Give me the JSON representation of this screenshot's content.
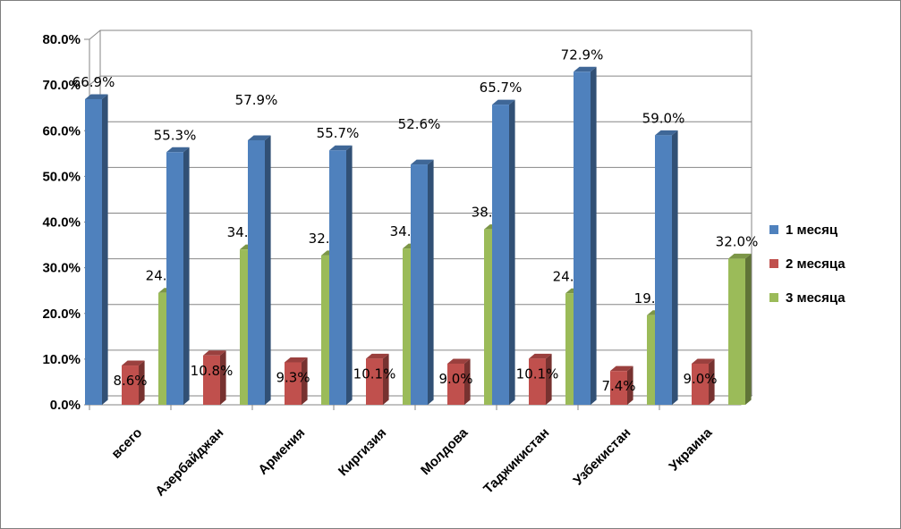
{
  "chart_data": {
    "type": "bar",
    "title": "",
    "xlabel": "",
    "ylabel": "",
    "ylim": [
      0,
      0.8
    ],
    "y_ticks": [
      "0.0%",
      "10.0%",
      "20.0%",
      "30.0%",
      "40.0%",
      "50.0%",
      "60.0%",
      "70.0%",
      "80.0%"
    ],
    "grid": true,
    "legend_position": "right",
    "categories": [
      "всего",
      "Азербайджан",
      "Армения",
      "Киргизия",
      "Молдова",
      "Таджикистан",
      "Узбекистан",
      "Украина"
    ],
    "series": [
      {
        "name": "1 месяц",
        "color": "#4f81bd",
        "values": [
          0.669,
          0.553,
          0.579,
          0.557,
          0.526,
          0.657,
          0.729,
          0.59
        ],
        "labels": [
          "66.9%",
          "55.3%",
          "57.9%",
          "55.7%",
          "52.6%",
          "65.7%",
          "72.9%",
          "59.0%"
        ]
      },
      {
        "name": "2 месяца",
        "color": "#c0504d",
        "values": [
          0.086,
          0.108,
          0.093,
          0.101,
          0.09,
          0.101,
          0.074,
          0.09
        ],
        "labels": [
          "8.6%",
          "10.8%",
          "9.3%",
          "10.1%",
          "9.0%",
          "10.1%",
          "7.4%",
          "9.0%"
        ]
      },
      {
        "name": "3 месяца",
        "color": "#9bbb59",
        "values": [
          0.245,
          0.34,
          0.327,
          0.342,
          0.384,
          0.244,
          0.196,
          0.32
        ],
        "labels": [
          "24.5%",
          "34.0%",
          "32.7%",
          "34.2%",
          "38.4%",
          "24.4%",
          "19.6%",
          "32.0%"
        ]
      }
    ]
  }
}
